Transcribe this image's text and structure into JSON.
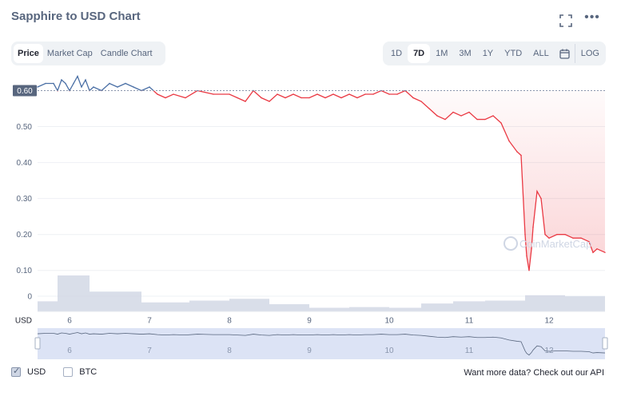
{
  "header": {
    "title": "Sapphire to USD Chart"
  },
  "metric_tabs": [
    {
      "label": "Price",
      "active": true
    },
    {
      "label": "Market Cap",
      "active": false
    },
    {
      "label": "Candle Chart",
      "active": false
    }
  ],
  "range_tabs": [
    {
      "label": "1D",
      "active": false
    },
    {
      "label": "7D",
      "active": true
    },
    {
      "label": "1M",
      "active": false
    },
    {
      "label": "3M",
      "active": false
    },
    {
      "label": "1Y",
      "active": false
    },
    {
      "label": "YTD",
      "active": false
    },
    {
      "label": "ALL",
      "active": false
    }
  ],
  "log_label": "LOG",
  "icons": {
    "expand": "expand-icon",
    "more": "more-dots-icon",
    "calendar": "calendar-icon"
  },
  "footer": {
    "usd_label": "USD",
    "usd_checked": true,
    "btc_label": "BTC",
    "btc_checked": false,
    "api_text": "Want more data? Check out our API"
  },
  "chart_data": {
    "type": "line",
    "x_unit_label": "USD",
    "xlim": [
      5.6,
      12.7
    ],
    "ylim": [
      0.075,
      0.63
    ],
    "y_ticks": [
      0,
      0.1,
      0.2,
      0.3,
      0.4,
      0.5
    ],
    "y_tick_labels": [
      "0",
      "0.10",
      "0.20",
      "0.30",
      "0.40",
      "0.50"
    ],
    "reference_value": 0.6,
    "reference_label": "0.60",
    "x_ticks": [
      6,
      7,
      8,
      9,
      10,
      11,
      12
    ],
    "x_tick_labels": [
      "6",
      "7",
      "8",
      "9",
      "10",
      "11",
      "12"
    ],
    "colors": {
      "above": "#4a6fa5",
      "below": "#ea3943",
      "area": "#ea3943",
      "volume": "#cfd6e4",
      "navigator": "#dce3f5"
    },
    "watermark": "CoinMarketCap",
    "series": [
      {
        "x": [
          5.6,
          5.7,
          5.8,
          5.85,
          5.9,
          5.95,
          6.0,
          6.05,
          6.1,
          6.15,
          6.2,
          6.25,
          6.3,
          6.4,
          6.5,
          6.6,
          6.7,
          6.8,
          6.9,
          7.0,
          7.1,
          7.2,
          7.3,
          7.45,
          7.6,
          7.8,
          8.0,
          8.1,
          8.2,
          8.3,
          8.4,
          8.5,
          8.6,
          8.7,
          8.8,
          8.9,
          9.0,
          9.1,
          9.2,
          9.3,
          9.4,
          9.5,
          9.6,
          9.7,
          9.8,
          9.9,
          10.0,
          10.1,
          10.2,
          10.3,
          10.4,
          10.5,
          10.6,
          10.7,
          10.8,
          10.9,
          11.0,
          11.1,
          11.2,
          11.3,
          11.4,
          11.5,
          11.6,
          11.65,
          11.7,
          11.72,
          11.75,
          11.78,
          11.8,
          11.85,
          11.9,
          11.95,
          12.0,
          12.1,
          12.2,
          12.3,
          12.4,
          12.5,
          12.55,
          12.6,
          12.7
        ],
        "y": [
          0.61,
          0.62,
          0.62,
          0.6,
          0.63,
          0.62,
          0.6,
          0.62,
          0.64,
          0.61,
          0.63,
          0.6,
          0.61,
          0.6,
          0.62,
          0.61,
          0.62,
          0.61,
          0.6,
          0.61,
          0.59,
          0.58,
          0.59,
          0.58,
          0.6,
          0.59,
          0.59,
          0.58,
          0.57,
          0.6,
          0.58,
          0.57,
          0.59,
          0.58,
          0.59,
          0.58,
          0.58,
          0.59,
          0.58,
          0.59,
          0.58,
          0.59,
          0.58,
          0.59,
          0.59,
          0.6,
          0.59,
          0.59,
          0.6,
          0.58,
          0.57,
          0.55,
          0.53,
          0.52,
          0.54,
          0.53,
          0.54,
          0.52,
          0.52,
          0.53,
          0.51,
          0.46,
          0.43,
          0.42,
          0.2,
          0.14,
          0.1,
          0.16,
          0.22,
          0.32,
          0.3,
          0.2,
          0.19,
          0.2,
          0.2,
          0.19,
          0.19,
          0.18,
          0.15,
          0.16,
          0.15
        ]
      }
    ],
    "volume": {
      "x": [
        5.6,
        5.85,
        6.25,
        6.9,
        7.5,
        8.0,
        8.5,
        9.0,
        9.5,
        10.0,
        10.4,
        10.8,
        11.2,
        11.7,
        12.2,
        12.7
      ],
      "values": [
        0.28,
        1.0,
        0.55,
        0.25,
        0.3,
        0.35,
        0.2,
        0.1,
        0.12,
        0.1,
        0.22,
        0.28,
        0.3,
        0.45,
        0.42,
        0.35
      ]
    }
  }
}
